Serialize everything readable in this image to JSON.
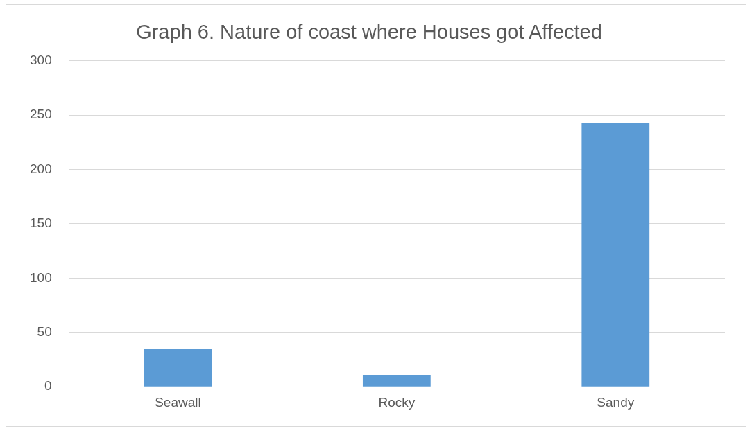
{
  "chart_data": {
    "type": "bar",
    "title": "Graph 6. Nature of coast where Houses got Affected",
    "categories": [
      "Seawall",
      "Rocky",
      "Sandy"
    ],
    "values": [
      35,
      11,
      243
    ],
    "color": "#5b9bd5",
    "ylim": [
      0,
      300
    ],
    "yticks": [
      0,
      50,
      100,
      150,
      200,
      250,
      300
    ],
    "grid": "y",
    "legend": false
  }
}
